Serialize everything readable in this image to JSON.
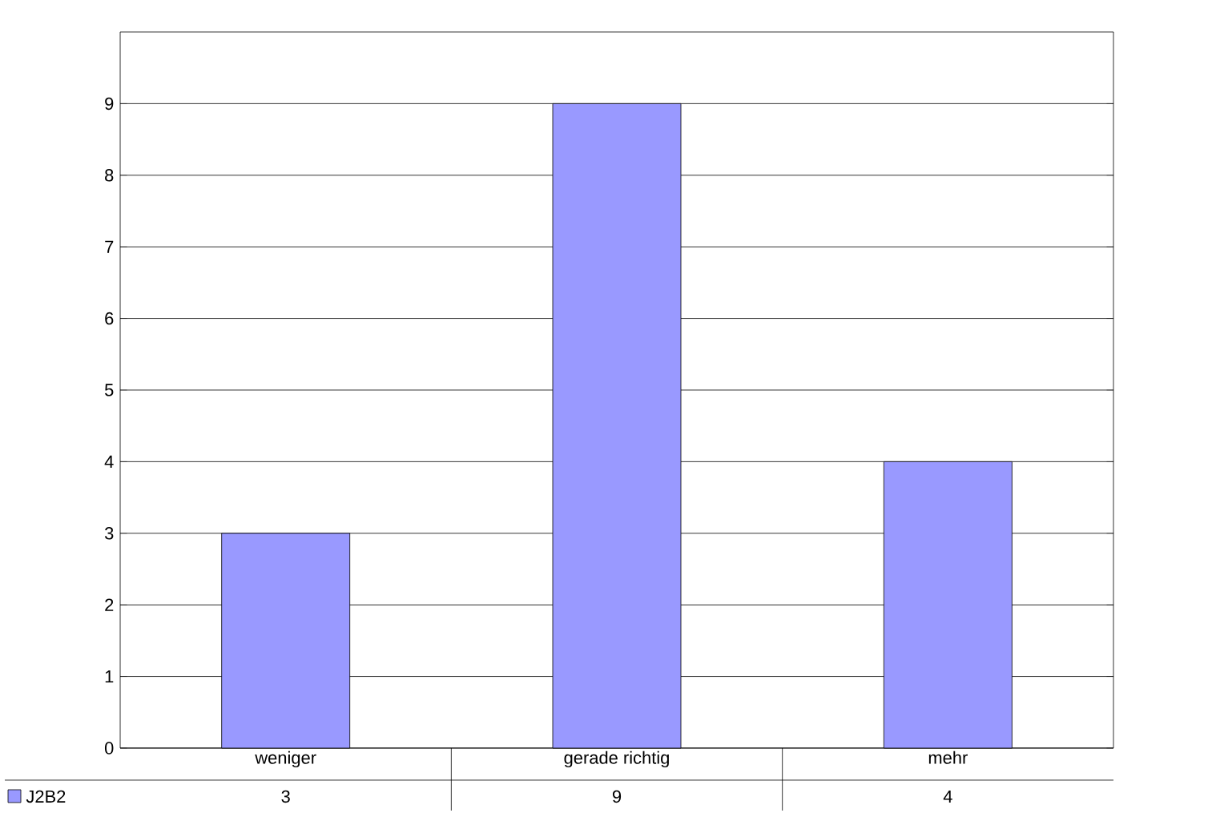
{
  "chart_data": {
    "type": "bar",
    "categories": [
      "weniger",
      "gerade richtig",
      "mehr"
    ],
    "series": [
      {
        "name": "J2B2",
        "color": "#9999ff",
        "values": [
          3,
          9,
          4
        ]
      }
    ],
    "ylim": [
      0,
      10
    ],
    "yticks": [
      0,
      1,
      2,
      3,
      4,
      5,
      6,
      7,
      8,
      9
    ],
    "grid": "y",
    "legend": "bottom left",
    "data_labels": true
  }
}
